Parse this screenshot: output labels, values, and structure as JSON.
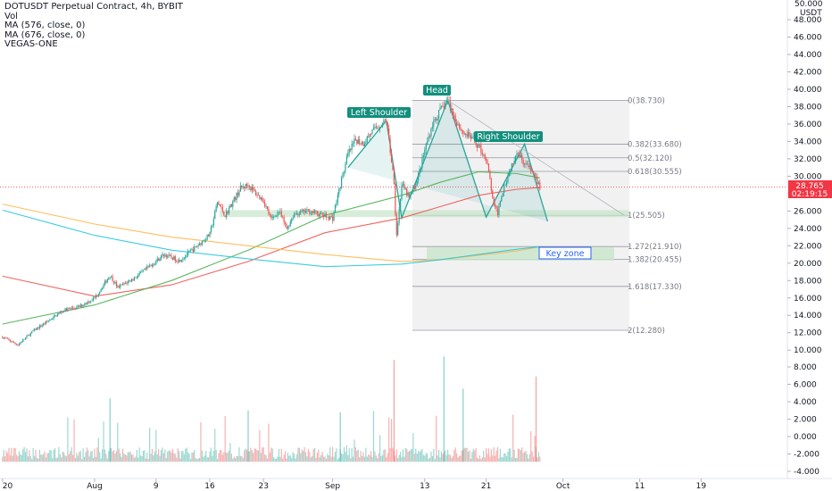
{
  "legend": {
    "symbol": "DOTUSDT Perpetual Contract, 4h, BYBIT",
    "vol": "Vol",
    "ma1": "MA (576, close, 0)",
    "ma2": "MA (676, close, 0)",
    "vegas": "VEGAS-ONE"
  },
  "price_axis": {
    "currency": "USDT",
    "top_label": "50.000",
    "current_price": "28.765",
    "countdown": "02:19:15",
    "current_color": "#f23645"
  },
  "annotations": {
    "head": "Head",
    "left_shoulder": "Left Shoulder",
    "right_shoulder": "Right Shoulder",
    "key_zone": "Key zone"
  },
  "colors": {
    "up": "#26a69a",
    "down": "#ef5350",
    "pattern": "#26a69a",
    "ma576": "#ef5350",
    "ma676": "#4caf50",
    "vegas_a": "#ffb74d",
    "vegas_b": "#26c6da",
    "fib_bg": "#ececee",
    "label_bg": "#138f7e"
  },
  "chart_data": {
    "type": "candlestick",
    "title": "DOTUSDT Perpetual Contract, 4h, BYBIT",
    "y_range": [
      9,
      50
    ],
    "y_ticks": [
      "48.000",
      "46.000",
      "44.000",
      "42.000",
      "40.000",
      "38.000",
      "36.000",
      "34.000",
      "32.000",
      "30.000",
      "28.000",
      "26.000",
      "24.000",
      "22.000",
      "20.000",
      "18.000",
      "16.000",
      "14.000",
      "12.000",
      "10.000"
    ],
    "x_ticks": [
      "20",
      "Aug",
      "9",
      "16",
      "23",
      "Sep",
      "13",
      "21",
      "Oct",
      "11",
      "19"
    ],
    "x_tick_days": [
      -12,
      0,
      8,
      15,
      22,
      31,
      43,
      51,
      61,
      71,
      79
    ],
    "price_path": [
      [
        -12,
        11.5
      ],
      [
        -10,
        10.6
      ],
      [
        -8,
        12.2
      ],
      [
        -6,
        13.4
      ],
      [
        -4,
        14.6
      ],
      [
        -2,
        15.0
      ],
      [
        0,
        16.0
      ],
      [
        2,
        18.6
      ],
      [
        3,
        17.2
      ],
      [
        5,
        18.2
      ],
      [
        7,
        19.5
      ],
      [
        9,
        21.0
      ],
      [
        11,
        20.3
      ],
      [
        13,
        21.7
      ],
      [
        15,
        23.3
      ],
      [
        16,
        27.0
      ],
      [
        17,
        25.5
      ],
      [
        19,
        28.6
      ],
      [
        20,
        29.0
      ],
      [
        21,
        28.0
      ],
      [
        22,
        27.2
      ],
      [
        23,
        25.0
      ],
      [
        24,
        26.0
      ],
      [
        25,
        24.0
      ],
      [
        26,
        25.7
      ],
      [
        28,
        26.0
      ],
      [
        30,
        25.4
      ],
      [
        31,
        25.2
      ],
      [
        32,
        29.0
      ],
      [
        33,
        32.5
      ],
      [
        34,
        34.2
      ],
      [
        35,
        33.8
      ],
      [
        36,
        35.0
      ],
      [
        37,
        35.8
      ],
      [
        38,
        36.4
      ],
      [
        39,
        29.5
      ],
      [
        39.3,
        23.0
      ],
      [
        40,
        29.0
      ],
      [
        41,
        27.5
      ],
      [
        42,
        29.5
      ],
      [
        43,
        33.0
      ],
      [
        44,
        36.0
      ],
      [
        45,
        37.5
      ],
      [
        46,
        38.73
      ],
      [
        47,
        36.5
      ],
      [
        48,
        35.0
      ],
      [
        49,
        34.5
      ],
      [
        50,
        33.5
      ],
      [
        51,
        32.0
      ],
      [
        51.5,
        29.5
      ],
      [
        52,
        26.5
      ],
      [
        52.5,
        25.8
      ],
      [
        53,
        28.0
      ],
      [
        54,
        30.5
      ],
      [
        55,
        33.0
      ],
      [
        56,
        31.5
      ],
      [
        57,
        30.5
      ],
      [
        58,
        28.765
      ]
    ],
    "series": [
      {
        "name": "MA (576, close, 0)",
        "points": [
          [
            -12,
            18.5
          ],
          [
            0,
            16.2
          ],
          [
            10,
            17.5
          ],
          [
            20,
            20.2
          ],
          [
            30,
            23.5
          ],
          [
            40,
            25.2
          ],
          [
            45,
            26.5
          ],
          [
            50,
            27.8
          ],
          [
            55,
            28.5
          ],
          [
            58,
            28.7
          ]
        ]
      },
      {
        "name": "MA (676, close, 0)",
        "points": [
          [
            -12,
            13.0
          ],
          [
            0,
            15.2
          ],
          [
            10,
            18.0
          ],
          [
            20,
            21.5
          ],
          [
            30,
            25.5
          ],
          [
            40,
            27.8
          ],
          [
            45,
            29.3
          ],
          [
            50,
            30.5
          ],
          [
            55,
            30.3
          ],
          [
            58,
            29.8
          ]
        ]
      },
      {
        "name": "VEGAS-ONE",
        "points": [
          [
            -12,
            26.8
          ],
          [
            0,
            24.5
          ],
          [
            10,
            23.0
          ],
          [
            20,
            22.0
          ],
          [
            30,
            21.0
          ],
          [
            40,
            20.2
          ],
          [
            45,
            20.4
          ],
          [
            50,
            20.9
          ],
          [
            55,
            21.4
          ],
          [
            58,
            21.9
          ]
        ]
      },
      {
        "name": "VEGAS-ONE",
        "points": [
          [
            -12,
            26.1
          ],
          [
            0,
            23.2
          ],
          [
            10,
            21.5
          ],
          [
            20,
            20.5
          ],
          [
            30,
            19.6
          ],
          [
            40,
            19.9
          ],
          [
            45,
            20.4
          ],
          [
            50,
            21.0
          ],
          [
            55,
            21.6
          ],
          [
            58,
            21.9
          ]
        ]
      }
    ],
    "fib_levels": [
      {
        "ratio": "0",
        "price": 38.73,
        "label": "0(38.730)"
      },
      {
        "ratio": "0.382",
        "price": 33.68,
        "label": "0.382(33.680)"
      },
      {
        "ratio": "0.5",
        "price": 32.12,
        "label": "0.5(32.120)"
      },
      {
        "ratio": "0.618",
        "price": 30.555,
        "label": "0.618(30.555)"
      },
      {
        "ratio": "1",
        "price": 25.505,
        "label": "1(25.505)"
      },
      {
        "ratio": "1.272",
        "price": 21.91,
        "label": "1.272(21.910)"
      },
      {
        "ratio": "1.382",
        "price": 20.455,
        "label": "1.382(20.455)"
      },
      {
        "ratio": "1.618",
        "price": 17.33,
        "label": "1.618(17.330)"
      },
      {
        "ratio": "2",
        "price": 12.28,
        "label": "2(12.280)"
      }
    ],
    "head_and_shoulders": [
      [
        33,
        31.0
      ],
      [
        38,
        36.4
      ],
      [
        40,
        25.2
      ],
      [
        46,
        38.73
      ],
      [
        51,
        25.3
      ],
      [
        56,
        33.7
      ],
      [
        59,
        24.8
      ]
    ],
    "neckline_zone": [
      25.3,
      26.1
    ],
    "key_zone": [
      20.3,
      21.8
    ],
    "volume_axis": [
      "8.000",
      "6.000",
      "4.000",
      "2.000",
      "0.000",
      "-2.000",
      "-4.000"
    ]
  }
}
